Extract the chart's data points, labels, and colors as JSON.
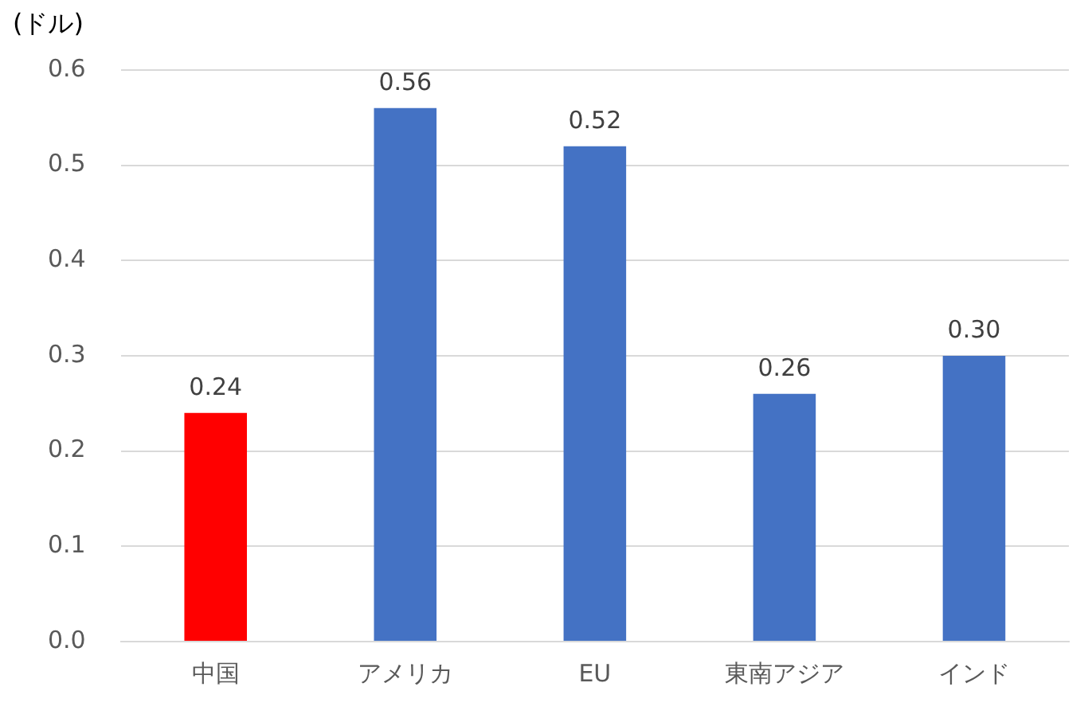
{
  "chart_data": {
    "type": "bar",
    "ylabel": "(ドル)",
    "categories": [
      "中国",
      "アメリカ",
      "EU",
      "東南アジア",
      "インド"
    ],
    "values": [
      0.24,
      0.56,
      0.52,
      0.26,
      0.3
    ],
    "colors": [
      "#ff0000",
      "#4472c4",
      "#4472c4",
      "#4472c4",
      "#4472c4"
    ],
    "value_labels": [
      "0.24",
      "0.56",
      "0.52",
      "0.26",
      "0.30"
    ],
    "ylim": [
      0,
      0.6
    ],
    "yticks": [
      {
        "value": 0,
        "label": "0.0"
      },
      {
        "value": 0.1,
        "label": "0.1"
      },
      {
        "value": 0.2,
        "label": "0.2"
      },
      {
        "value": 0.3,
        "label": "0.3"
      },
      {
        "value": 0.4,
        "label": "0.4"
      },
      {
        "value": 0.5,
        "label": "0.5"
      },
      {
        "value": 0.6,
        "label": "0.6"
      }
    ],
    "grid": "y"
  }
}
